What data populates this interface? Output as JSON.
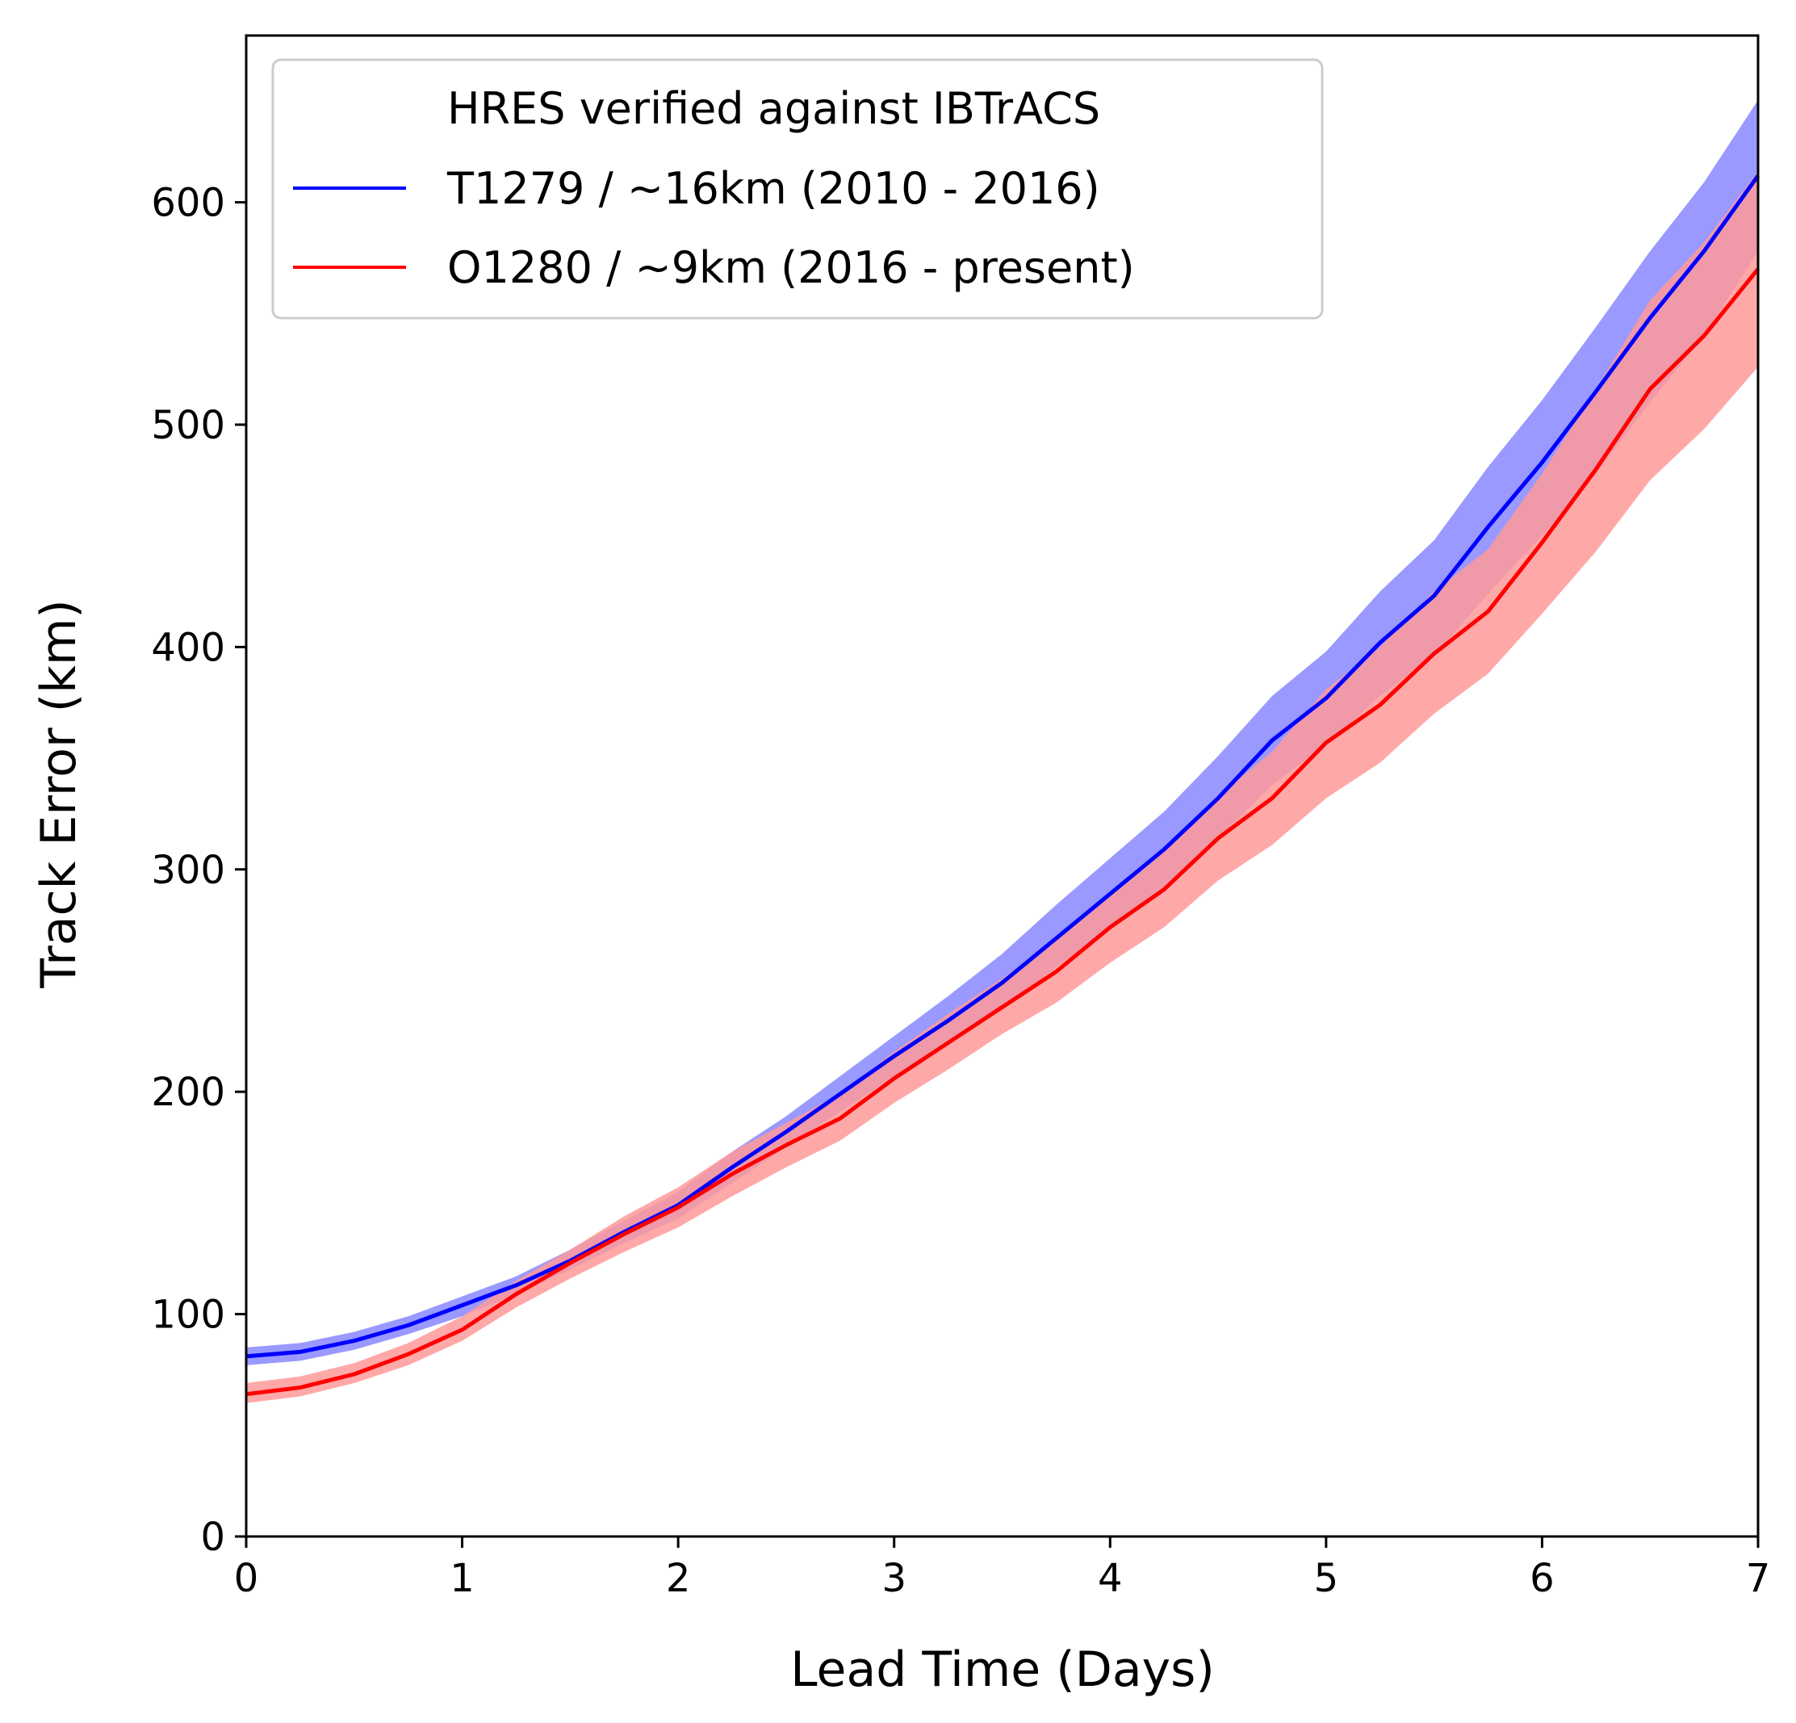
{
  "chart_data": {
    "type": "line",
    "title": "",
    "xlabel": "Lead Time (Days)",
    "ylabel": "Track Error (km)",
    "xlim": [
      0,
      7
    ],
    "ylim": [
      0,
      675
    ],
    "xticks": [
      "0",
      "1",
      "2",
      "3",
      "4",
      "5",
      "6",
      "7"
    ],
    "yticks": [
      "0",
      "100",
      "200",
      "300",
      "400",
      "500",
      "600"
    ],
    "grid": false,
    "legend": {
      "placement": "top-left",
      "title": "HRES verified against IBTrACS"
    },
    "x": [
      0,
      0.25,
      0.5,
      0.75,
      1,
      1.25,
      1.5,
      1.75,
      2,
      2.25,
      2.5,
      2.75,
      3,
      3.25,
      3.5,
      3.75,
      4,
      4.25,
      4.5,
      4.75,
      5,
      5.25,
      5.5,
      5.75,
      6,
      6.25,
      6.5,
      6.75,
      7
    ],
    "series": [
      {
        "name": "T1279 / ~16km (2010 - 2016)",
        "color": "#0000ff",
        "band_color": "#9999ff",
        "values": [
          81,
          83,
          88,
          95,
          104,
          113,
          124,
          137,
          149,
          166,
          182,
          199,
          216,
          232,
          249,
          269,
          289,
          309,
          332,
          358,
          377,
          402,
          423,
          454,
          483,
          515,
          548,
          578,
          612
        ],
        "lower": [
          77,
          79,
          84,
          91,
          99,
          109,
          120,
          132,
          143,
          159,
          175,
          191,
          207,
          221,
          237,
          256,
          274,
          292,
          314,
          338,
          356,
          378,
          396,
          424,
          450,
          478,
          510,
          540,
          578
        ],
        "upper": [
          85,
          87,
          92,
          99,
          108,
          117,
          129,
          142,
          155,
          173,
          189,
          207,
          225,
          243,
          262,
          284,
          305,
          326,
          351,
          378,
          398,
          425,
          448,
          481,
          511,
          544,
          578,
          609,
          646
        ]
      },
      {
        "name": "O1280 / ~9km (2016 - present)",
        "color": "#ff0000",
        "band_color": "#ff9999",
        "values": [
          64,
          67,
          73,
          82,
          93,
          109,
          123,
          136,
          148,
          163,
          176,
          188,
          206,
          222,
          238,
          254,
          274,
          291,
          314,
          332,
          357,
          374,
          397,
          416,
          447,
          480,
          516,
          540,
          570
        ],
        "lower": [
          60,
          63,
          69,
          77,
          88,
          103,
          116,
          128,
          139,
          153,
          166,
          178,
          195,
          210,
          226,
          240,
          258,
          274,
          295,
          311,
          332,
          348,
          370,
          388,
          415,
          443,
          475,
          498,
          526
        ],
        "upper": [
          69,
          72,
          78,
          87,
          99,
          115,
          129,
          144,
          157,
          173,
          186,
          199,
          218,
          235,
          251,
          268,
          290,
          309,
          333,
          353,
          381,
          400,
          425,
          444,
          478,
          516,
          556,
          582,
          614
        ]
      }
    ]
  }
}
